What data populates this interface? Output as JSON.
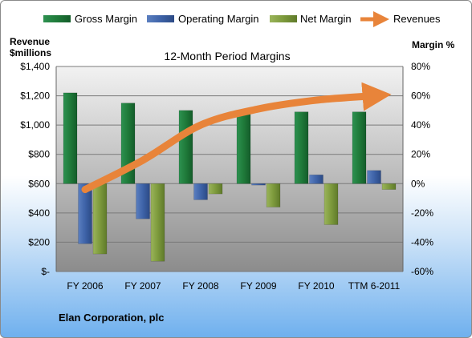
{
  "chart_data": {
    "type": "bar",
    "title": "12-Month Period Margins",
    "company": "Elan Corporation, plc",
    "categories": [
      "FY 2006",
      "FY 2007",
      "FY 2008",
      "FY 2009",
      "FY 2010",
      "TTM 6-2011"
    ],
    "left_axis": {
      "label_line1": "Revenue",
      "label_line2": "$millions",
      "ylim": [
        0,
        1400
      ],
      "ticks": [
        0,
        200,
        400,
        600,
        800,
        1000,
        1200,
        1400
      ],
      "tick_labels": [
        "$-",
        "$200",
        "$400",
        "$600",
        "$800",
        "$1,000",
        "$1,200",
        "$1,400"
      ]
    },
    "right_axis": {
      "label": "Margin %",
      "ylim": [
        -60,
        80
      ],
      "ticks": [
        -60,
        -40,
        -20,
        0,
        20,
        40,
        60,
        80
      ],
      "tick_labels": [
        "-60%",
        "-40%",
        "-20%",
        "0%",
        "20%",
        "40%",
        "60%",
        "80%"
      ]
    },
    "series": [
      {
        "name": "Gross Margin",
        "axis": "right",
        "kind": "bar",
        "color": "#1f7a3a",
        "values": [
          62,
          55,
          50,
          49,
          49,
          49
        ]
      },
      {
        "name": "Operating Margin",
        "axis": "right",
        "kind": "bar",
        "color": "#3e63a8",
        "values": [
          -41,
          -24,
          -11,
          -1,
          6,
          9
        ]
      },
      {
        "name": "Net Margin",
        "axis": "right",
        "kind": "bar",
        "color": "#7d9a3c",
        "values": [
          -48,
          -53,
          -7,
          -16,
          -28,
          -4
        ]
      },
      {
        "name": "Revenues",
        "axis": "left",
        "kind": "line",
        "color": "#e8843a",
        "values": [
          560,
          760,
          1000,
          1110,
          1170,
          1200
        ]
      }
    ],
    "legend": "top",
    "grid": true
  }
}
